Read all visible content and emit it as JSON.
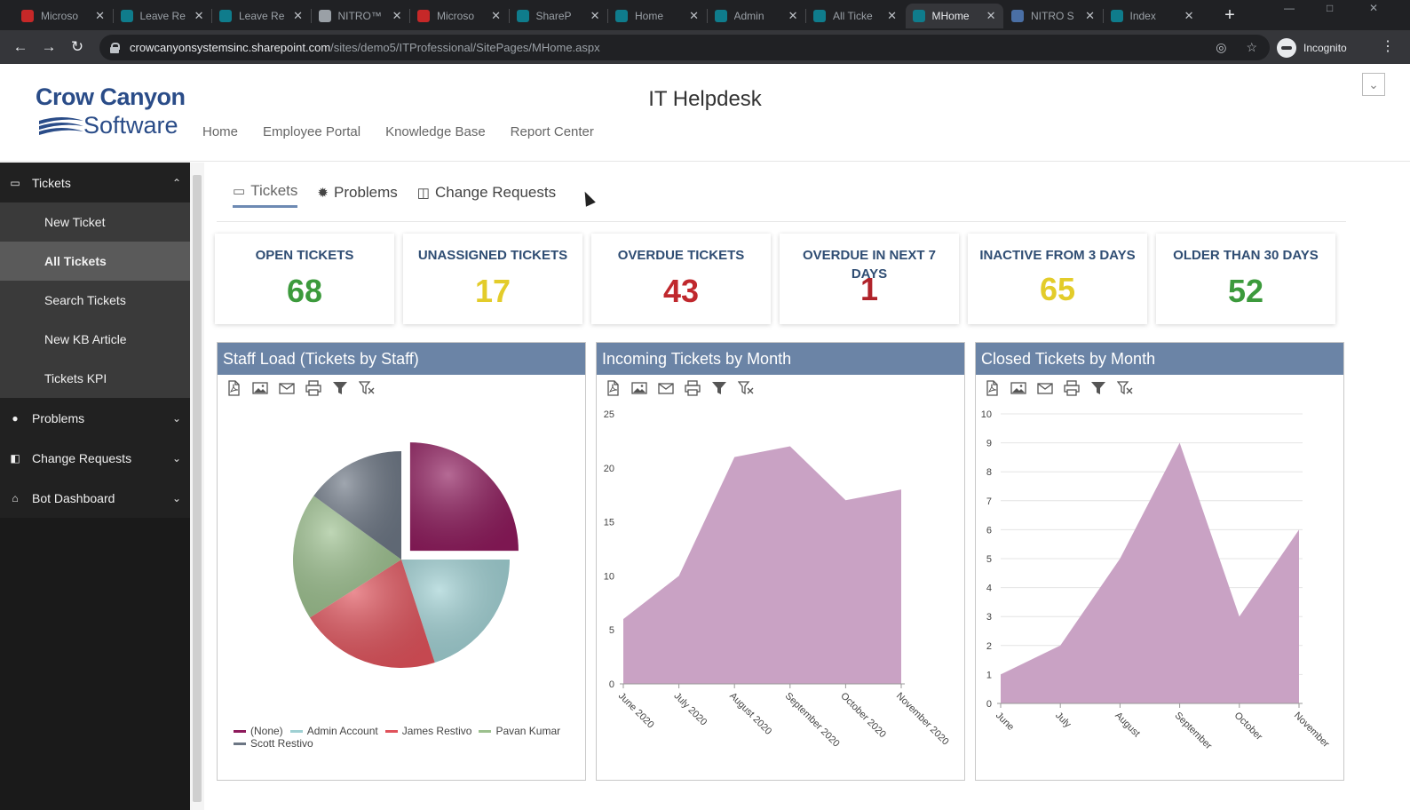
{
  "browser": {
    "tabs": [
      {
        "title": "Microso",
        "fav": "#c62828"
      },
      {
        "title": "Leave Re",
        "fav": "#0f7c8c"
      },
      {
        "title": "Leave Re",
        "fav": "#0f7c8c"
      },
      {
        "title": "NITRO™",
        "fav": "#9aa0a6"
      },
      {
        "title": "Microso",
        "fav": "#c62828"
      },
      {
        "title": "ShareP",
        "fav": "#0f7c8c"
      },
      {
        "title": "Home",
        "fav": "#0f7c8c"
      },
      {
        "title": "Admin",
        "fav": "#0f7c8c"
      },
      {
        "title": "All Ticke",
        "fav": "#0f7c8c"
      },
      {
        "title": "MHome",
        "fav": "#0f7c8c",
        "active": true
      },
      {
        "title": "NITRO S",
        "fav": "#4a6fa5"
      },
      {
        "title": "Index",
        "fav": "#0f7c8c"
      }
    ],
    "url_host": "crowcanyonsystemsinc.sharepoint.com",
    "url_path": "/sites/demo5/ITProfessional/SitePages/MHome.aspx",
    "profile_label": "Incognito"
  },
  "header": {
    "logo_line1": "Crow Canyon",
    "logo_line2": "Software",
    "site_title": "IT Helpdesk",
    "nav": [
      "Home",
      "Employee Portal",
      "Knowledge Base",
      "Report Center"
    ]
  },
  "sidebar": {
    "tickets_label": "Tickets",
    "sub_items": [
      "New Ticket",
      "All Tickets",
      "Search Tickets",
      "New KB Article",
      "Tickets KPI"
    ],
    "selected": "All Tickets",
    "problems_label": "Problems",
    "change_requests_label": "Change Requests",
    "bot_dashboard_label": "Bot Dashboard"
  },
  "main_tabs": [
    {
      "label": "Tickets",
      "icon": "monitor-icon"
    },
    {
      "label": "Problems",
      "icon": "bug-icon"
    },
    {
      "label": "Change Requests",
      "icon": "change-icon"
    }
  ],
  "kpis": [
    {
      "label": "OPEN TICKETS",
      "value": "68",
      "color": "#3c9a3c"
    },
    {
      "label": "UNASSIGNED TICKETS",
      "value": "17",
      "color": "#e3cc2a"
    },
    {
      "label": "OVERDUE TICKETS",
      "value": "43",
      "color": "#c0282d"
    },
    {
      "label": "OVERDUE IN NEXT 7 DAYS",
      "value": "1",
      "color": "#b0232a"
    },
    {
      "label": "INACTIVE FROM 3 DAYS",
      "value": "65",
      "color": "#e3cc2a"
    },
    {
      "label": "OLDER THAN 30 DAYS",
      "value": "52",
      "color": "#3c9a3c"
    }
  ],
  "colors": {
    "panel_header": "#6b84a6",
    "area_fill": "#c9a2c4",
    "accent": "#2f4d73"
  },
  "panels": {
    "staff_title": "Staff Load (Tickets by Staff)",
    "incoming_title": "Incoming Tickets by Month",
    "closed_title": "Closed Tickets by Month"
  },
  "chart_data": [
    {
      "type": "pie",
      "title": "Staff Load (Tickets by Staff)",
      "slices": [
        {
          "name": "(None)",
          "value": 25,
          "color": "#8e1a5c"
        },
        {
          "name": "Admin Account",
          "value": 20,
          "color": "#9fd0d3"
        },
        {
          "name": "James Restivo",
          "value": 21,
          "color": "#e0525b"
        },
        {
          "name": "Pavan Kumar",
          "value": 19,
          "color": "#9cc08e"
        },
        {
          "name": "Scott Restivo",
          "value": 15,
          "color": "#6c7684"
        }
      ],
      "legend_position": "bottom",
      "exploded_slice": "(None)"
    },
    {
      "type": "area",
      "title": "Incoming Tickets by Month",
      "categories": [
        "June 2020",
        "July 2020",
        "August 2020",
        "September 2020",
        "October 2020",
        "November 2020"
      ],
      "values": [
        6,
        10,
        21,
        22,
        17,
        18
      ],
      "ylim": [
        0,
        25
      ],
      "yticks": [
        0,
        5,
        10,
        15,
        20,
        25
      ],
      "grid": false
    },
    {
      "type": "area",
      "title": "Closed Tickets by Month",
      "categories": [
        "June",
        "July",
        "August",
        "September",
        "October",
        "November"
      ],
      "values": [
        1,
        2,
        5,
        9,
        3,
        6
      ],
      "ylim": [
        0,
        10
      ],
      "yticks": [
        0,
        1,
        2,
        3,
        4,
        5,
        6,
        7,
        8,
        9,
        10
      ],
      "grid": true
    }
  ]
}
